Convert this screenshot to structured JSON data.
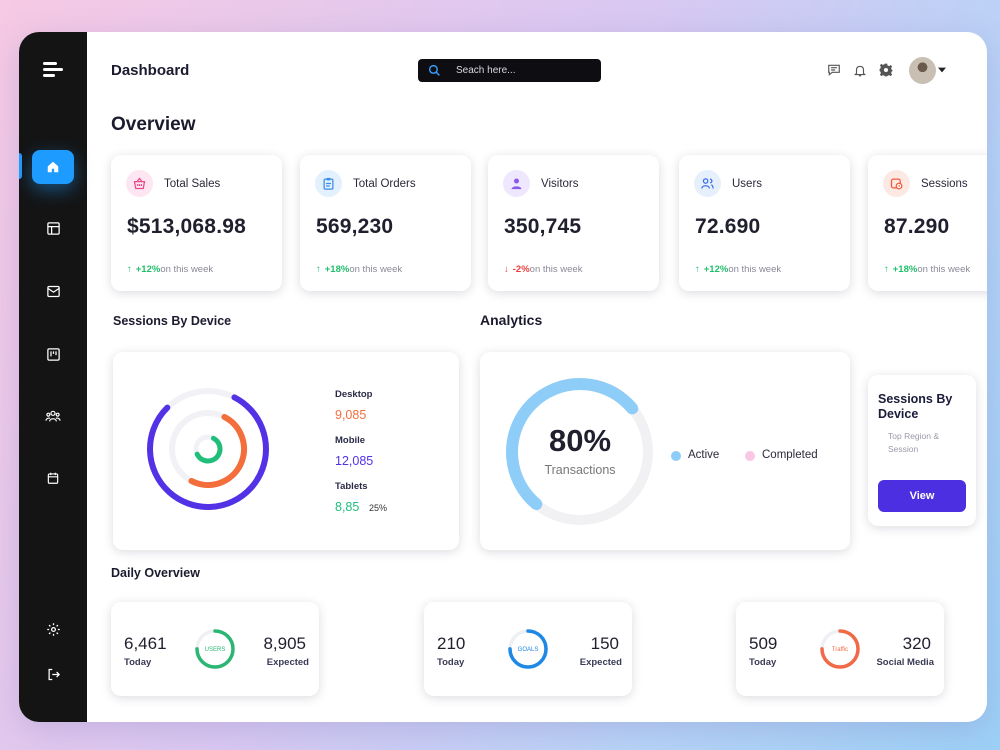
{
  "header": {
    "title": "Dashboard",
    "search_placeholder": "Seach here...",
    "icons": [
      "chat-icon",
      "bell-icon",
      "gear-icon",
      "avatar",
      "chevron-down-icon"
    ]
  },
  "sidebar": {
    "items": [
      {
        "icon": "home-icon",
        "active": true
      },
      {
        "icon": "layout-icon",
        "active": false
      },
      {
        "icon": "mail-icon",
        "active": false
      },
      {
        "icon": "board-icon",
        "active": false
      },
      {
        "icon": "users-icon",
        "active": false
      },
      {
        "icon": "calendar-icon",
        "active": false
      }
    ],
    "bottom": [
      "settings-icon",
      "logout-icon"
    ]
  },
  "overview": {
    "title": "Overview",
    "stats": [
      {
        "label": "Total Sales",
        "value": "$513,068.98",
        "change": "+12%",
        "direction": "up",
        "suffix": "on this week",
        "icon": "basket-icon",
        "icon_bg": "#fde6f1",
        "icon_color": "#e84a8a"
      },
      {
        "label": "Total Orders",
        "value": "569,230",
        "change": "+18%",
        "direction": "up",
        "suffix": "on this week",
        "icon": "clipboard-icon",
        "icon_bg": "#e3f0fd",
        "icon_color": "#3b8ee8"
      },
      {
        "label": "Visitors",
        "value": "350,745",
        "change": "-2%",
        "direction": "down",
        "suffix": "on this week",
        "icon": "person-icon",
        "icon_bg": "#efe7fd",
        "icon_color": "#8a5bea"
      },
      {
        "label": "Users",
        "value": "72.690",
        "change": "+12%",
        "direction": "up",
        "suffix": "on this week",
        "icon": "users-icon",
        "icon_bg": "#e6f0fd",
        "icon_color": "#3b6ee8"
      },
      {
        "label": "Sessions",
        "value": "87.290",
        "change": "+18%",
        "direction": "up",
        "suffix": "on this week",
        "icon": "session-icon",
        "icon_bg": "#fde9e4",
        "icon_color": "#ee5a3a"
      }
    ]
  },
  "sessions_by_device": {
    "title": "Sessions By Device",
    "desktop_label": "Desktop",
    "desktop_value": "9,085",
    "mobile_label": "Mobile",
    "mobile_value": "12,085",
    "tablets_label": "Tablets",
    "tablets_value": "8,85",
    "tablets_pct": "25%",
    "rings": [
      {
        "name": "Desktop",
        "fraction": 0.5,
        "color": "#f36e3b"
      },
      {
        "name": "Mobile",
        "fraction": 0.8,
        "color": "#5332e6"
      },
      {
        "name": "Tablets",
        "fraction": 0.6,
        "color": "#1fbf7b"
      }
    ]
  },
  "analytics": {
    "title": "Analytics",
    "percent": "80%",
    "caption": "Transactions",
    "active_fraction": 0.8,
    "legend_active": "Active",
    "legend_completed": "Completed",
    "active_color": "#8ecdf8",
    "completed_color": "#f9c6e3"
  },
  "side_card": {
    "title": "Sessions By Device",
    "subtitle": "Top Region & Session",
    "button": "View"
  },
  "daily": {
    "title": "Daily Overview",
    "cards": [
      {
        "left_value": "6,461",
        "left_label": "Today",
        "ring_label": "USERS",
        "right_value": "8,905",
        "right_label": "Expected",
        "color": "#2bb673",
        "fraction": 0.75
      },
      {
        "left_value": "210",
        "left_label": "Today",
        "ring_label": "GOALS",
        "right_value": "150",
        "right_label": "Expected",
        "color": "#1e88e5",
        "fraction": 0.75
      },
      {
        "left_value": "509",
        "left_label": "Today",
        "ring_label": "Traffic",
        "right_value": "320",
        "right_label": "Social Media",
        "color": "#f06a45",
        "fraction": 0.75
      }
    ]
  }
}
